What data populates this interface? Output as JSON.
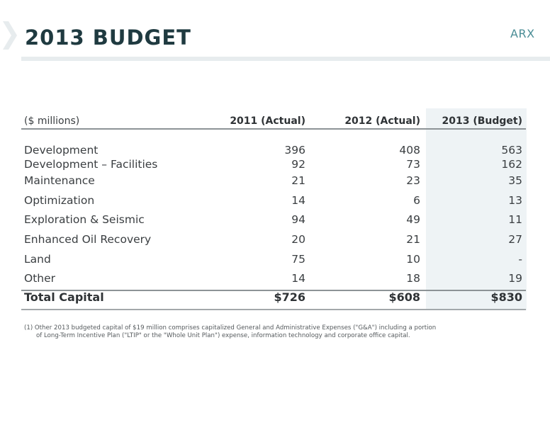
{
  "header": {
    "title": "2013 BUDGET",
    "brand": "ARX"
  },
  "table": {
    "columns": [
      "($ millions)",
      "2011 (Actual)",
      "2012 (Actual)",
      "2013 (Budget)"
    ],
    "rows": [
      {
        "label": "Development",
        "v2011": "396",
        "v2012": "408",
        "v2013": "563"
      },
      {
        "label": "Development – Facilities",
        "v2011": "92",
        "v2012": "73",
        "v2013": "162"
      },
      {
        "label": "Maintenance",
        "v2011": "21",
        "v2012": "23",
        "v2013": "35"
      },
      {
        "label": "Optimization",
        "v2011": "14",
        "v2012": "6",
        "v2013": "13"
      },
      {
        "label": "Exploration & Seismic",
        "v2011": "94",
        "v2012": "49",
        "v2013": "11"
      },
      {
        "label": "Enhanced Oil Recovery",
        "v2011": "20",
        "v2012": "21",
        "v2013": "27"
      },
      {
        "label": "Land",
        "v2011": "75",
        "v2012": "10",
        "v2013": "-"
      },
      {
        "label": "Other",
        "v2011": "14",
        "v2012": "18",
        "v2013": "19"
      }
    ],
    "total": {
      "label": "Total Capital",
      "v2011": "$726",
      "v2012": "$608",
      "v2013": "$830"
    }
  },
  "footnote": {
    "line1": "(1)  Other 2013 budgeted capital of $19 million comprises capitalized General and Administrative Expenses (\"G&A\") including a portion",
    "line2": "of Long-Term Incentive Plan (\"LTIP\" or the \"Whole Unit Plan\") expense, information technology and corporate office capital."
  },
  "colors": {
    "title": "#1f3a40",
    "brand": "#4a8d96",
    "budget_column_shade": "#eef3f5"
  }
}
